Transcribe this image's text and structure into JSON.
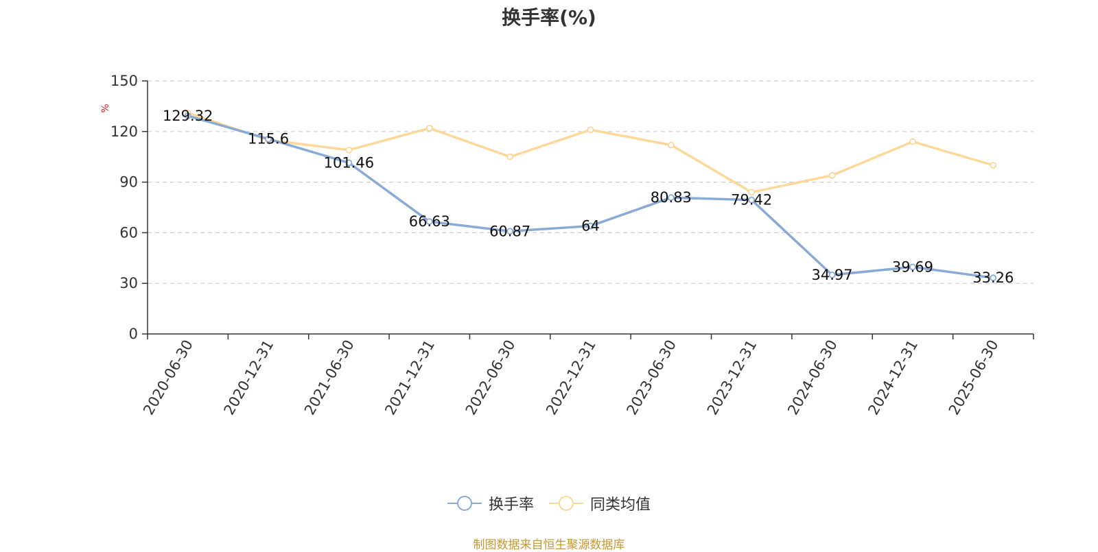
{
  "title": "换手率(%)",
  "source_note": "制图数据来自恒生聚源数据库",
  "colors": {
    "series_1": "#8aaad6",
    "series_2": "#fcd89a",
    "grid": "#cccccc",
    "axis": "#333333",
    "unit": "#e02020",
    "source": "#c8962e"
  },
  "chart_data": {
    "type": "line",
    "title": "换手率(%)",
    "ylabel": "%",
    "xlabel": "",
    "ylim": [
      0,
      150
    ],
    "y_ticks": [
      "0",
      "30",
      "60",
      "90",
      "120",
      "150"
    ],
    "grid": "horizontal-dashed",
    "legend_position": "bottom-center",
    "categories": [
      "2020-06-30",
      "2020-12-31",
      "2021-06-30",
      "2021-12-31",
      "2022-06-30",
      "2022-12-31",
      "2023-06-30",
      "2023-12-31",
      "2024-06-30",
      "2024-12-31",
      "2025-06-30"
    ],
    "series": [
      {
        "name": "换手率",
        "values": [
          129.32,
          115.6,
          101.46,
          66.63,
          60.87,
          64,
          80.83,
          79.42,
          34.97,
          39.69,
          33.26
        ],
        "data_labels": [
          "129.32",
          "115.6",
          "101.46",
          "66.63",
          "60.87",
          "64",
          "80.83",
          "79.42",
          "34.97",
          "39.69",
          "33.26"
        ]
      },
      {
        "name": "同类均值",
        "values": [
          131,
          115,
          109,
          122,
          105,
          121,
          112,
          84,
          94,
          114,
          100
        ]
      }
    ]
  }
}
